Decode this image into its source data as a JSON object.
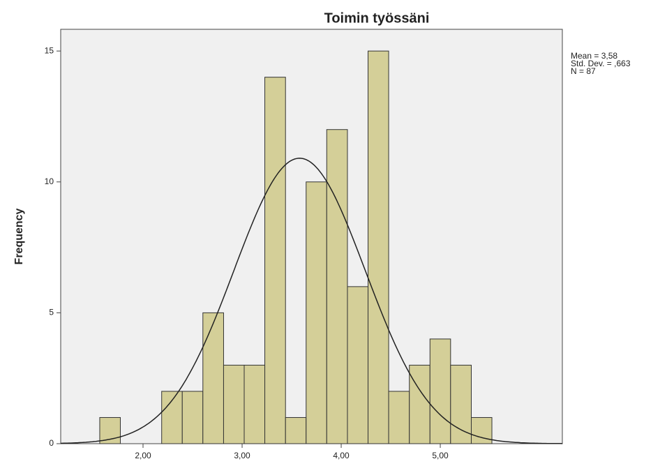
{
  "chart_data": {
    "type": "histogram",
    "title": "Toimin työssäni",
    "y_label": "Frequency",
    "bins": [
      1.563,
      1.771,
      1.979,
      2.188,
      2.396,
      2.604,
      2.813,
      3.021,
      3.229,
      3.438,
      3.646,
      3.854,
      4.063,
      4.271,
      4.479,
      4.688,
      4.896,
      5.104,
      5.313,
      5.521
    ],
    "values": [
      1,
      0,
      0,
      2,
      2,
      5,
      3,
      3,
      14,
      1,
      10,
      12,
      6,
      15,
      2,
      3,
      4,
      3,
      1
    ],
    "color": "#d4cf98",
    "xlim": [
      1.169,
      6.232
    ],
    "ylim": [
      0,
      15.83
    ],
    "xticks": [
      {
        "value": 2,
        "label": "2,00"
      },
      {
        "value": 3,
        "label": "3,00"
      },
      {
        "value": 4,
        "label": "4,00"
      },
      {
        "value": 5,
        "label": "5,00"
      }
    ],
    "yticks": [
      0,
      5,
      10,
      15
    ],
    "stats": [
      {
        "value": 3.58,
        "label": "Mean = 3,58"
      },
      {
        "value": 0.663,
        "label": "Std. Dev. = ,663"
      },
      {
        "value": 87,
        "label": "N = 87"
      }
    ]
  }
}
